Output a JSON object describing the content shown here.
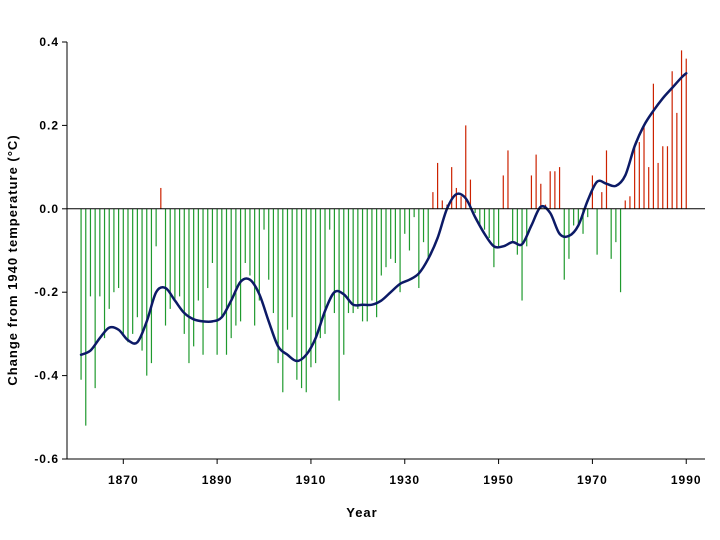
{
  "chart_data": {
    "type": "bar",
    "xlabel": "Year",
    "ylabel": "Change from 1940 temperature (°C)",
    "xlim": [
      1858,
      1994
    ],
    "ylim": [
      -0.6,
      0.4
    ],
    "x_ticks": [
      1870,
      1890,
      1910,
      1930,
      1950,
      1970,
      1990
    ],
    "x_tick_labels": [
      "1870",
      "1890",
      "1910",
      "1930",
      "1950",
      "1970",
      "1990"
    ],
    "y_ticks": [
      0.4,
      0.2,
      0.0,
      -0.2,
      -0.4,
      -0.6
    ],
    "y_tick_labels": [
      "0.4",
      "0.2",
      "0.0",
      "-0.2",
      "-0.4",
      "-0.6"
    ],
    "grid": false,
    "legend": "none",
    "colors": {
      "positive": "#cc2200",
      "negative": "#1f9a2e",
      "smoothed": "#0c1a66"
    },
    "series": [
      {
        "type": "bar",
        "x": [
          1861,
          1862,
          1863,
          1864,
          1865,
          1866,
          1867,
          1868,
          1869,
          1870,
          1871,
          1872,
          1873,
          1874,
          1875,
          1876,
          1877,
          1878,
          1879,
          1880,
          1881,
          1882,
          1883,
          1884,
          1885,
          1886,
          1887,
          1888,
          1889,
          1890,
          1891,
          1892,
          1893,
          1894,
          1895,
          1896,
          1897,
          1898,
          1899,
          1900,
          1901,
          1902,
          1903,
          1904,
          1905,
          1906,
          1907,
          1908,
          1909,
          1910,
          1911,
          1912,
          1913,
          1914,
          1915,
          1916,
          1917,
          1918,
          1919,
          1920,
          1921,
          1922,
          1923,
          1924,
          1925,
          1926,
          1927,
          1928,
          1929,
          1930,
          1931,
          1932,
          1933,
          1934,
          1935,
          1936,
          1937,
          1938,
          1939,
          1940,
          1941,
          1942,
          1943,
          1944,
          1945,
          1946,
          1947,
          1948,
          1949,
          1950,
          1951,
          1952,
          1953,
          1954,
          1955,
          1956,
          1957,
          1958,
          1959,
          1960,
          1961,
          1962,
          1963,
          1964,
          1965,
          1966,
          1967,
          1968,
          1969,
          1970,
          1971,
          1972,
          1973,
          1974,
          1975,
          1976,
          1977,
          1978,
          1979,
          1980,
          1981,
          1982,
          1983,
          1984,
          1985,
          1986,
          1987,
          1988,
          1989,
          1990
        ],
        "values": [
          -0.41,
          -0.52,
          -0.21,
          -0.43,
          -0.21,
          -0.31,
          -0.24,
          -0.2,
          -0.19,
          -0.3,
          -0.32,
          -0.3,
          -0.26,
          -0.34,
          -0.4,
          -0.37,
          -0.09,
          0.05,
          -0.28,
          -0.24,
          -0.22,
          -0.21,
          -0.3,
          -0.37,
          -0.33,
          -0.22,
          -0.35,
          -0.19,
          -0.13,
          -0.35,
          -0.26,
          -0.35,
          -0.31,
          -0.28,
          -0.27,
          -0.13,
          -0.16,
          -0.28,
          -0.22,
          -0.05,
          -0.17,
          -0.25,
          -0.37,
          -0.44,
          -0.29,
          -0.26,
          -0.41,
          -0.43,
          -0.44,
          -0.38,
          -0.37,
          -0.31,
          -0.3,
          -0.05,
          -0.25,
          -0.46,
          -0.35,
          -0.25,
          -0.25,
          -0.24,
          -0.27,
          -0.27,
          -0.22,
          -0.26,
          -0.16,
          -0.14,
          -0.12,
          -0.13,
          -0.2,
          -0.06,
          -0.1,
          -0.02,
          -0.19,
          -0.08,
          -0.12,
          0.04,
          0.11,
          0.02,
          0.01,
          0.1,
          0.05,
          0.03,
          0.2,
          0.07,
          -0.01,
          -0.04,
          -0.05,
          -0.07,
          -0.14,
          -0.09,
          0.08,
          0.14,
          -0.08,
          -0.11,
          -0.22,
          -0.09,
          0.08,
          0.13,
          0.06,
          0.01,
          0.09,
          0.09,
          0.1,
          -0.17,
          -0.12,
          -0.04,
          -0.04,
          -0.06,
          -0.02,
          0.08,
          -0.11,
          0.04,
          0.14,
          -0.12,
          -0.08,
          -0.2,
          0.02,
          0.03,
          0.15,
          0.16,
          0.2,
          0.1,
          0.3,
          0.11,
          0.15,
          0.15,
          0.33,
          0.23,
          0.38,
          0.36
        ]
      },
      {
        "type": "line",
        "x": [
          1861,
          1863,
          1865,
          1867,
          1869,
          1871,
          1873,
          1875,
          1877,
          1879,
          1881,
          1883,
          1885,
          1887,
          1889,
          1891,
          1893,
          1895,
          1897,
          1899,
          1901,
          1903,
          1905,
          1907,
          1909,
          1911,
          1913,
          1915,
          1917,
          1919,
          1921,
          1923,
          1925,
          1927,
          1929,
          1931,
          1933,
          1935,
          1937,
          1939,
          1941,
          1943,
          1945,
          1947,
          1949,
          1951,
          1953,
          1955,
          1957,
          1959,
          1961,
          1963,
          1965,
          1967,
          1969,
          1971,
          1973,
          1975,
          1977,
          1979,
          1981,
          1983,
          1985,
          1987,
          1989,
          1990
        ],
        "values": [
          -0.35,
          -0.34,
          -0.31,
          -0.285,
          -0.29,
          -0.315,
          -0.32,
          -0.27,
          -0.2,
          -0.19,
          -0.22,
          -0.25,
          -0.265,
          -0.27,
          -0.27,
          -0.26,
          -0.22,
          -0.175,
          -0.17,
          -0.205,
          -0.27,
          -0.33,
          -0.35,
          -0.365,
          -0.35,
          -0.31,
          -0.245,
          -0.2,
          -0.205,
          -0.23,
          -0.23,
          -0.23,
          -0.22,
          -0.2,
          -0.18,
          -0.17,
          -0.155,
          -0.12,
          -0.07,
          0.0,
          0.035,
          0.025,
          -0.02,
          -0.06,
          -0.09,
          -0.09,
          -0.08,
          -0.085,
          -0.04,
          0.005,
          -0.01,
          -0.06,
          -0.065,
          -0.04,
          0.02,
          0.065,
          0.06,
          0.055,
          0.08,
          0.15,
          0.2,
          0.235,
          0.265,
          0.29,
          0.315,
          0.325
        ]
      }
    ]
  }
}
